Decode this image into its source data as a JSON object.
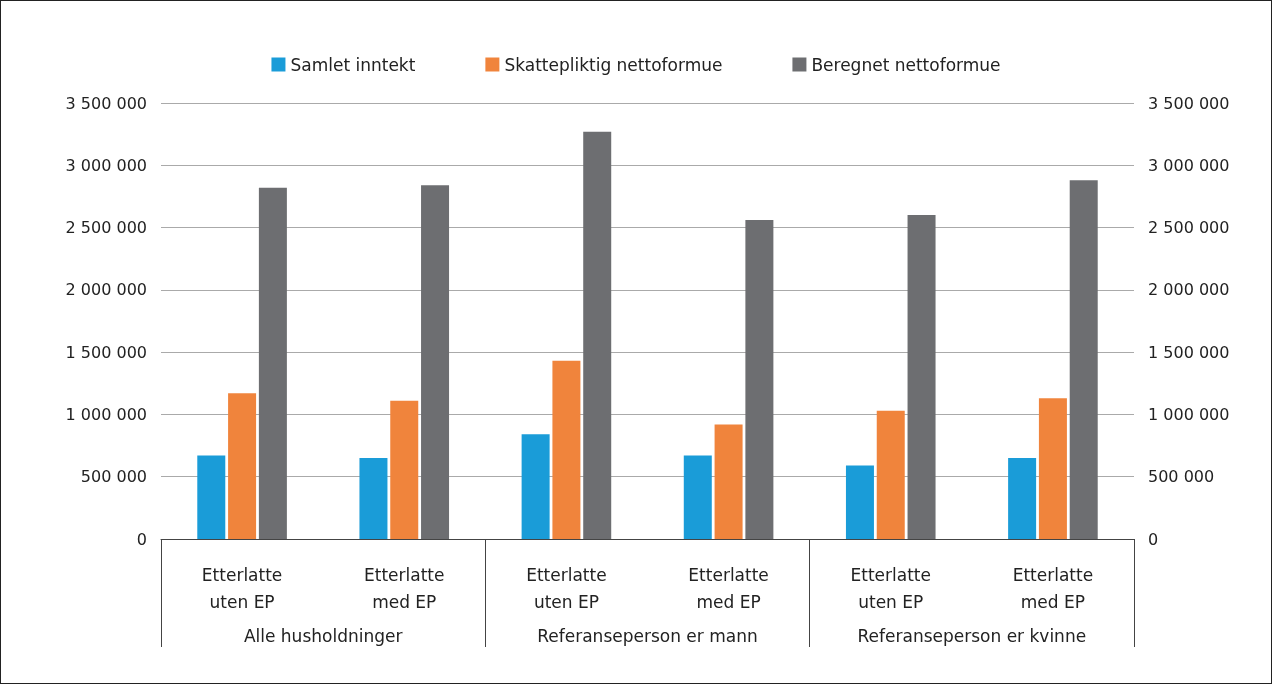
{
  "chart_data": {
    "type": "bar",
    "categories": [
      "Etterlatte\nuten EP",
      "Etterlatte\nmed EP",
      "Etterlatte\nuten EP",
      "Etterlatte\nmed EP",
      "Etterlatte\nuten EP",
      "Etterlatte\nmed EP"
    ],
    "annotations": [
      "Alle husholdninger",
      "Referanseperson er mann",
      "Referanseperson er kvinne"
    ],
    "series": [
      {
        "name": "Samlet inntekt",
        "color": "#1a9cd8",
        "values": [
          670000,
          650000,
          840000,
          670000,
          590000,
          650000
        ]
      },
      {
        "name": "Skattepliktig nettoformue",
        "color": "#f0843c",
        "values": [
          1170000,
          1110000,
          1430000,
          920000,
          1030000,
          1130000
        ]
      },
      {
        "name": "Beregnet nettoformue",
        "color": "#6d6e71",
        "values": [
          2820000,
          2840000,
          3270000,
          2560000,
          2600000,
          2880000
        ]
      }
    ],
    "ylim": [
      0,
      3500000
    ],
    "yticks": [
      0,
      {
        "value": 500000,
        "label": "500 000"
      },
      {
        "value": 1000000,
        "label": "1 000 000"
      },
      {
        "value": 1500000,
        "label": "1 500 000"
      },
      {
        "value": 2000000,
        "label": "2 000 000"
      },
      {
        "value": 2500000,
        "label": "2 500 000"
      },
      {
        "value": 3000000,
        "label": "3 000 000"
      },
      {
        "value": 3500000,
        "label": "3 500 000"
      }
    ],
    "y2lim": [
      0,
      3500000
    ],
    "y2ticks": [
      0,
      {
        "value": 500000,
        "label": "500 000"
      },
      {
        "value": 1000000,
        "label": "1 000 000"
      },
      {
        "value": 1500000,
        "label": "1 500 000"
      },
      {
        "value": 2000000,
        "label": "2 000 000"
      },
      {
        "value": 2500000,
        "label": "2 500 000"
      },
      {
        "value": 3000000,
        "label": "3 000 000"
      },
      {
        "value": 3500000,
        "label": "3 500 000"
      }
    ],
    "grid": "y",
    "legend": "top"
  }
}
